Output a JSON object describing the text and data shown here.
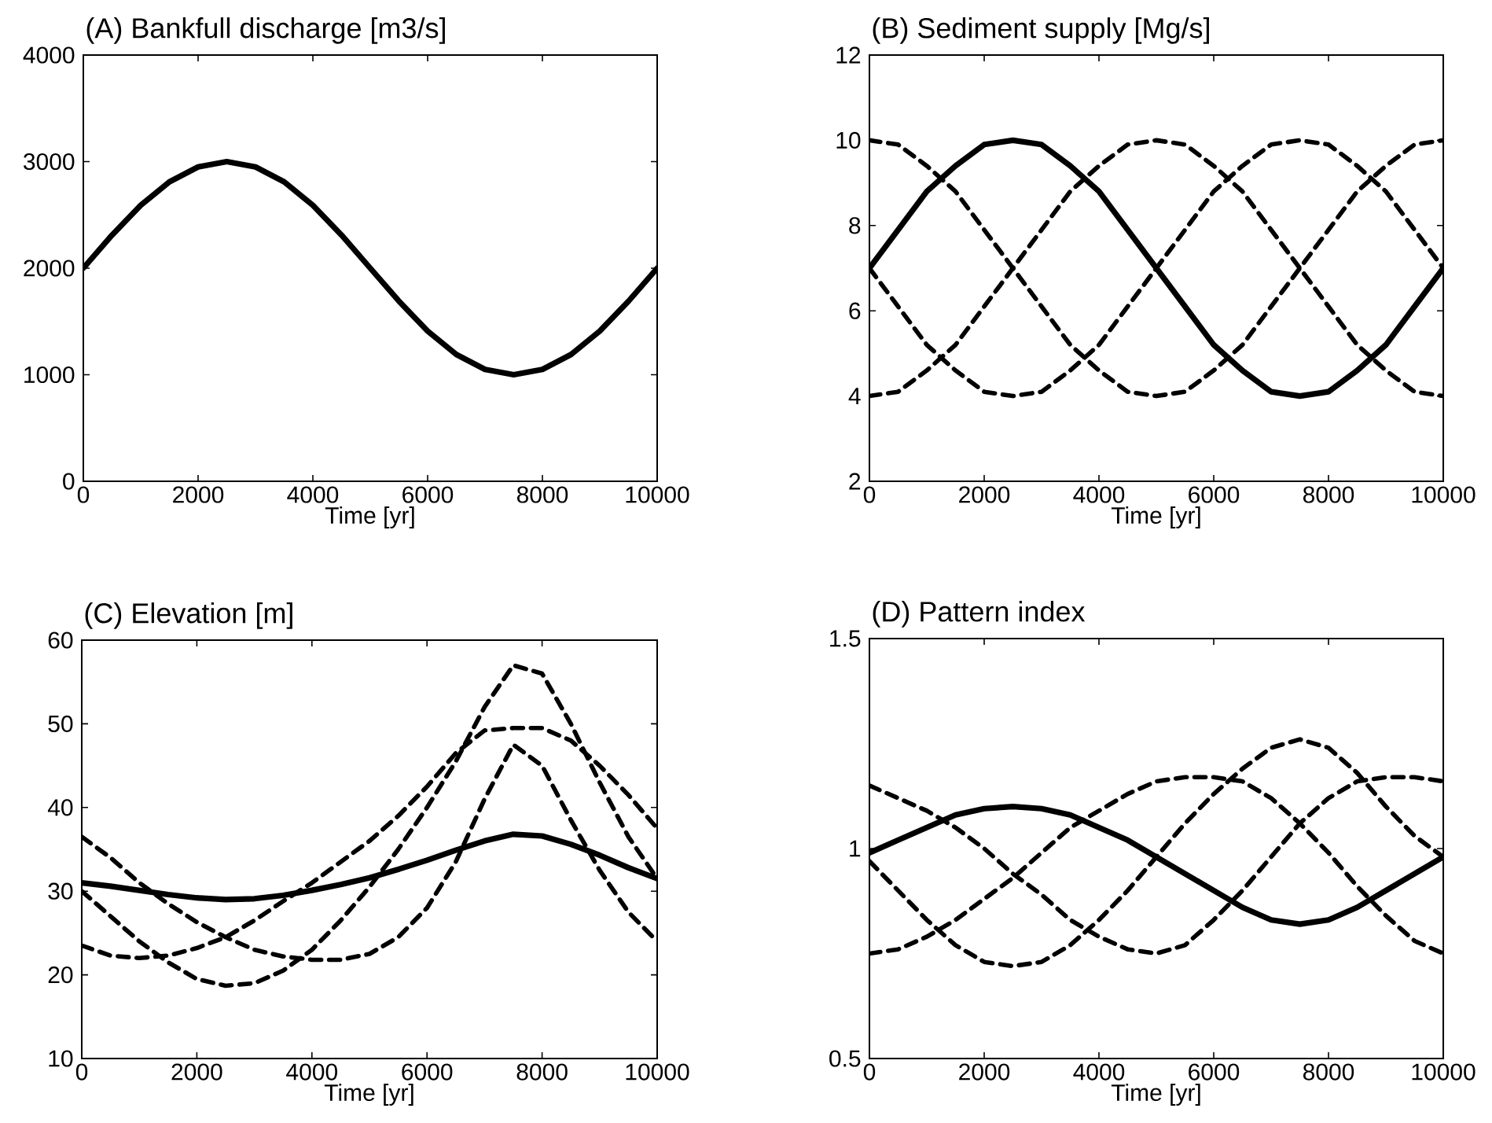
{
  "chart_data": [
    {
      "type": "line",
      "title": "(A) Bankfull discharge [m3/s]",
      "xlabel": "Time [yr]",
      "xlim": [
        0,
        10000
      ],
      "xticks": [
        0,
        2000,
        4000,
        6000,
        8000,
        10000
      ],
      "ylim": [
        0,
        4000
      ],
      "yticks": [
        0,
        1000,
        2000,
        3000,
        4000
      ],
      "x": [
        0,
        500,
        1000,
        1500,
        2000,
        2500,
        3000,
        3500,
        4000,
        4500,
        5000,
        5500,
        6000,
        6500,
        7000,
        7500,
        8000,
        8500,
        9000,
        9500,
        10000
      ],
      "series": [
        {
          "color": "#000000",
          "line_style": "solid",
          "values": [
            2000,
            2310,
            2590,
            2810,
            2950,
            3000,
            2950,
            2810,
            2590,
            2310,
            2000,
            1690,
            1410,
            1190,
            1050,
            1000,
            1050,
            1190,
            1410,
            1690,
            2000
          ]
        }
      ]
    },
    {
      "type": "line",
      "title": "(B) Sediment supply [Mg/s]",
      "xlabel": "Time [yr]",
      "xlim": [
        0,
        10000
      ],
      "xticks": [
        0,
        2000,
        4000,
        6000,
        8000,
        10000
      ],
      "ylim": [
        2,
        12
      ],
      "yticks": [
        2,
        4,
        6,
        8,
        10,
        12
      ],
      "x": [
        0,
        500,
        1000,
        1500,
        2000,
        2500,
        3000,
        3500,
        4000,
        4500,
        5000,
        5500,
        6000,
        6500,
        7000,
        7500,
        8000,
        8500,
        9000,
        9500,
        10000
      ],
      "series": [
        {
          "color": "#000000",
          "line_style": "solid",
          "values": [
            7,
            7.9,
            8.8,
            9.4,
            9.9,
            10,
            9.9,
            9.4,
            8.8,
            7.9,
            7,
            6.1,
            5.2,
            4.6,
            4.1,
            4,
            4.1,
            4.6,
            5.2,
            6.1,
            7
          ]
        },
        {
          "color": "#000000",
          "line_style": "dashed",
          "values": [
            10,
            9.9,
            9.4,
            8.8,
            7.9,
            7,
            6.1,
            5.2,
            4.6,
            4.1,
            4,
            4.1,
            4.6,
            5.2,
            6.1,
            7,
            7.9,
            8.8,
            9.4,
            9.9,
            10
          ]
        },
        {
          "color": "#000000",
          "line_style": "dashed",
          "values": [
            7,
            6.1,
            5.2,
            4.6,
            4.1,
            4,
            4.1,
            4.6,
            5.2,
            6.1,
            7,
            7.9,
            8.8,
            9.4,
            9.9,
            10,
            9.9,
            9.4,
            8.8,
            7.9,
            7
          ]
        },
        {
          "color": "#000000",
          "line_style": "dashed",
          "values": [
            4,
            4.1,
            4.6,
            5.2,
            6.1,
            7,
            7.9,
            8.8,
            9.4,
            9.9,
            10,
            9.9,
            9.4,
            8.8,
            7.9,
            7,
            6.1,
            5.2,
            4.6,
            4.1,
            4
          ]
        }
      ]
    },
    {
      "type": "line",
      "title": "(C) Elevation [m]",
      "xlabel": "Time [yr]",
      "xlim": [
        0,
        10000
      ],
      "xticks": [
        0,
        2000,
        4000,
        6000,
        8000,
        10000
      ],
      "ylim": [
        10,
        60
      ],
      "yticks": [
        10,
        20,
        30,
        40,
        50,
        60
      ],
      "x": [
        0,
        500,
        1000,
        1500,
        2000,
        2500,
        3000,
        3500,
        4000,
        4500,
        5000,
        5500,
        6000,
        6500,
        7000,
        7500,
        8000,
        8500,
        9000,
        9500,
        10000
      ],
      "series": [
        {
          "color": "#000000",
          "line_style": "solid",
          "values": [
            31,
            30.6,
            30.1,
            29.6,
            29.2,
            29,
            29.1,
            29.5,
            30.1,
            30.8,
            31.6,
            32.6,
            33.7,
            34.9,
            36,
            36.8,
            36.6,
            35.6,
            34.3,
            32.8,
            31.5
          ]
        },
        {
          "color": "#000000",
          "line_style": "dashed",
          "values": [
            36.5,
            34,
            31,
            28.5,
            26.3,
            24.5,
            23,
            22.2,
            21.8,
            21.8,
            22.5,
            24.5,
            28,
            33.5,
            41,
            47.5,
            45,
            38.5,
            32.5,
            27.5,
            24
          ]
        },
        {
          "color": "#000000",
          "line_style": "dashed",
          "values": [
            30,
            27,
            24,
            21.5,
            19.5,
            18.7,
            19,
            20.5,
            23,
            26.5,
            30.5,
            35,
            40,
            45.5,
            52,
            57,
            56,
            50,
            43,
            36.5,
            31.5
          ]
        },
        {
          "color": "#000000",
          "line_style": "dashed",
          "values": [
            23.5,
            22.3,
            22,
            22.3,
            23.2,
            24.5,
            26.5,
            28.8,
            31,
            33.5,
            36,
            39,
            42.5,
            46.5,
            49.2,
            49.5,
            49.5,
            48,
            45,
            41.5,
            37.5
          ]
        }
      ]
    },
    {
      "type": "line",
      "title": "(D) Pattern index",
      "xlabel": "Time [yr]",
      "xlim": [
        0,
        10000
      ],
      "xticks": [
        0,
        2000,
        4000,
        6000,
        8000,
        10000
      ],
      "ylim": [
        0.5,
        1.5
      ],
      "yticks": [
        0.5,
        1,
        1.5
      ],
      "x": [
        0,
        500,
        1000,
        1500,
        2000,
        2500,
        3000,
        3500,
        4000,
        4500,
        5000,
        5500,
        6000,
        6500,
        7000,
        7500,
        8000,
        8500,
        9000,
        9500,
        10000
      ],
      "series": [
        {
          "color": "#000000",
          "line_style": "solid",
          "values": [
            0.99,
            1.02,
            1.05,
            1.08,
            1.095,
            1.1,
            1.095,
            1.08,
            1.05,
            1.02,
            0.98,
            0.94,
            0.9,
            0.86,
            0.83,
            0.82,
            0.83,
            0.86,
            0.9,
            0.94,
            0.98
          ]
        },
        {
          "color": "#000000",
          "line_style": "dashed",
          "values": [
            1.15,
            1.12,
            1.09,
            1.05,
            1,
            0.94,
            0.89,
            0.83,
            0.79,
            0.76,
            0.75,
            0.77,
            0.83,
            0.9,
            0.98,
            1.06,
            1.12,
            1.16,
            1.17,
            1.17,
            1.16
          ]
        },
        {
          "color": "#000000",
          "line_style": "dashed",
          "values": [
            0.97,
            0.9,
            0.83,
            0.77,
            0.73,
            0.72,
            0.73,
            0.77,
            0.83,
            0.9,
            0.98,
            1.06,
            1.13,
            1.19,
            1.24,
            1.26,
            1.24,
            1.18,
            1.1,
            1.03,
            0.98
          ]
        },
        {
          "color": "#000000",
          "line_style": "dashed",
          "values": [
            0.75,
            0.76,
            0.79,
            0.83,
            0.88,
            0.93,
            0.99,
            1.05,
            1.09,
            1.13,
            1.16,
            1.17,
            1.17,
            1.16,
            1.12,
            1.06,
            0.99,
            0.91,
            0.84,
            0.78,
            0.75
          ]
        }
      ]
    }
  ]
}
